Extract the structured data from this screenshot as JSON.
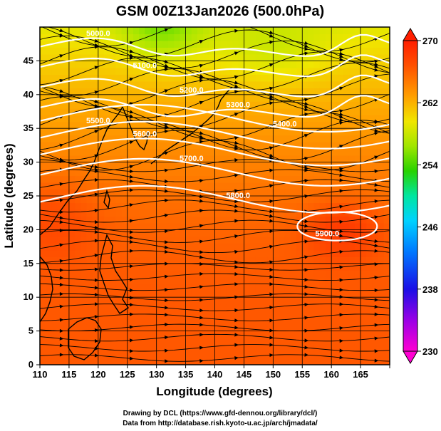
{
  "chart_data": {
    "type": "heatmap",
    "title": "GSM 00Z13Jan2026 (500.0hPa)",
    "xlabel": "Longitude (degrees)",
    "ylabel": "Latitude  (degrees)",
    "xlim": [
      110,
      170
    ],
    "ylim": [
      0,
      50
    ],
    "x_ticks": [
      110,
      115,
      120,
      125,
      130,
      135,
      140,
      145,
      150,
      155,
      160,
      165
    ],
    "y_ticks": [
      0,
      5,
      10,
      15,
      20,
      25,
      30,
      35,
      40,
      45
    ],
    "grid": true,
    "shading_variable": "temperature (K)",
    "colorbar": {
      "range": [
        230,
        270
      ],
      "tick_values": [
        230,
        238,
        246,
        254,
        262,
        270
      ],
      "colors": [
        "#ff00d2",
        "#9a00e6",
        "#1a10e6",
        "#0078ff",
        "#00d2ff",
        "#00e6a0",
        "#28d200",
        "#a0e600",
        "#f0e600",
        "#ffa000",
        "#ff5000",
        "#ff1e00"
      ]
    },
    "contour_levels": [
      {
        "value": 5000.0,
        "label": "5000.0"
      },
      {
        "value": 5100.0,
        "label": "5100.0"
      },
      {
        "value": 5200.0,
        "label": "5200.0"
      },
      {
        "value": 5300.0,
        "label": "5300.0"
      },
      {
        "value": 5400.0,
        "label": "5400.0"
      },
      {
        "value": 5500.0,
        "label": "5500.0"
      },
      {
        "value": 5600.0,
        "label": "5600.0"
      },
      {
        "value": 5700.0,
        "label": "5700.0"
      },
      {
        "value": 5800.0,
        "label": "5800.0"
      },
      {
        "value": 5900.0,
        "label": "5900.0"
      }
    ],
    "overlay": "wind streamlines"
  },
  "footer": {
    "credit_line1": "Drawing by DCL (https://www.gfd-dennou.org/library/dcl/)",
    "credit_line2": "Data from http://database.rish.kyoto-u.ac.jp/arch/jmadata/"
  }
}
